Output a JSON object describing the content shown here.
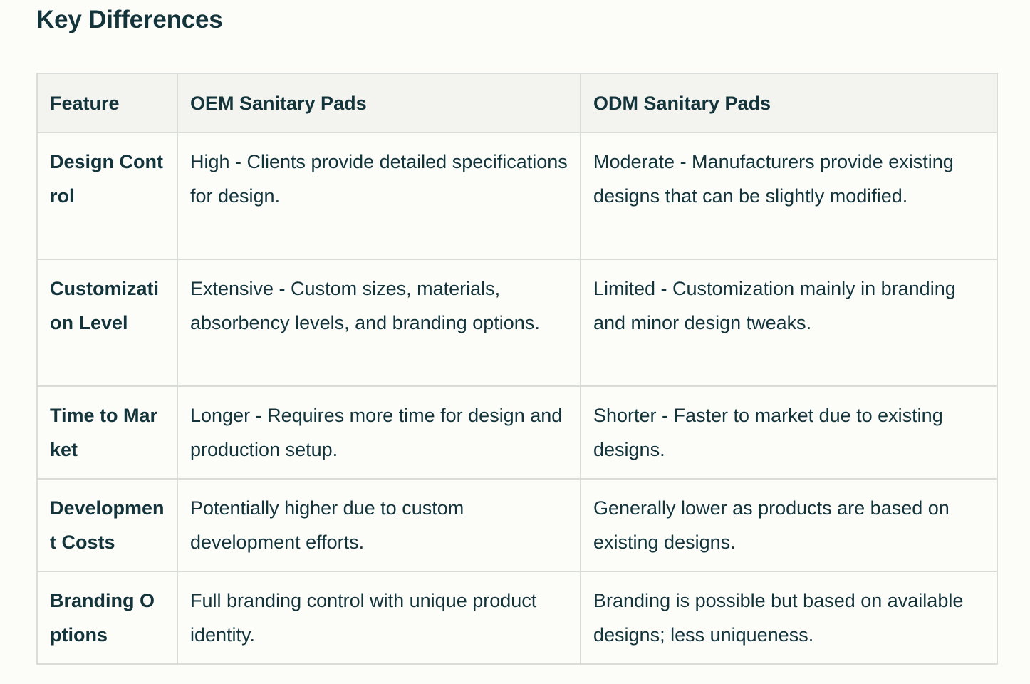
{
  "title": "Key Differences",
  "table": {
    "headers": [
      "Feature",
      "OEM Sanitary Pads",
      "ODM Sanitary Pads"
    ],
    "rows": [
      {
        "feature": "Design Control",
        "oem": "High - Clients provide detailed specifications for design.",
        "odm": "Moderate - Manufacturers provide existing designs that can be slightly modified."
      },
      {
        "feature": "Customization Level",
        "oem": "Extensive - Custom sizes, materials, absorbency levels, and branding options.",
        "odm": "Limited - Customization mainly in branding and minor design tweaks."
      },
      {
        "feature": "Time to Market",
        "oem": "Longer - Requires more time for design and production setup.",
        "odm": "Shorter - Faster to market due to existing designs."
      },
      {
        "feature": "Development Costs",
        "oem": "Potentially higher due to custom development efforts.",
        "odm": "Generally lower as products are based on existing designs."
      },
      {
        "feature": "Branding Options",
        "oem": "Full branding control with unique product identity.",
        "odm": "Branding is possible but based on available designs; less uniqueness."
      }
    ]
  },
  "colors": {
    "text": "#13343b",
    "header_bg": "#f3f3ef",
    "border": "#d9dcd8",
    "page_bg": "#fcfcf9"
  }
}
